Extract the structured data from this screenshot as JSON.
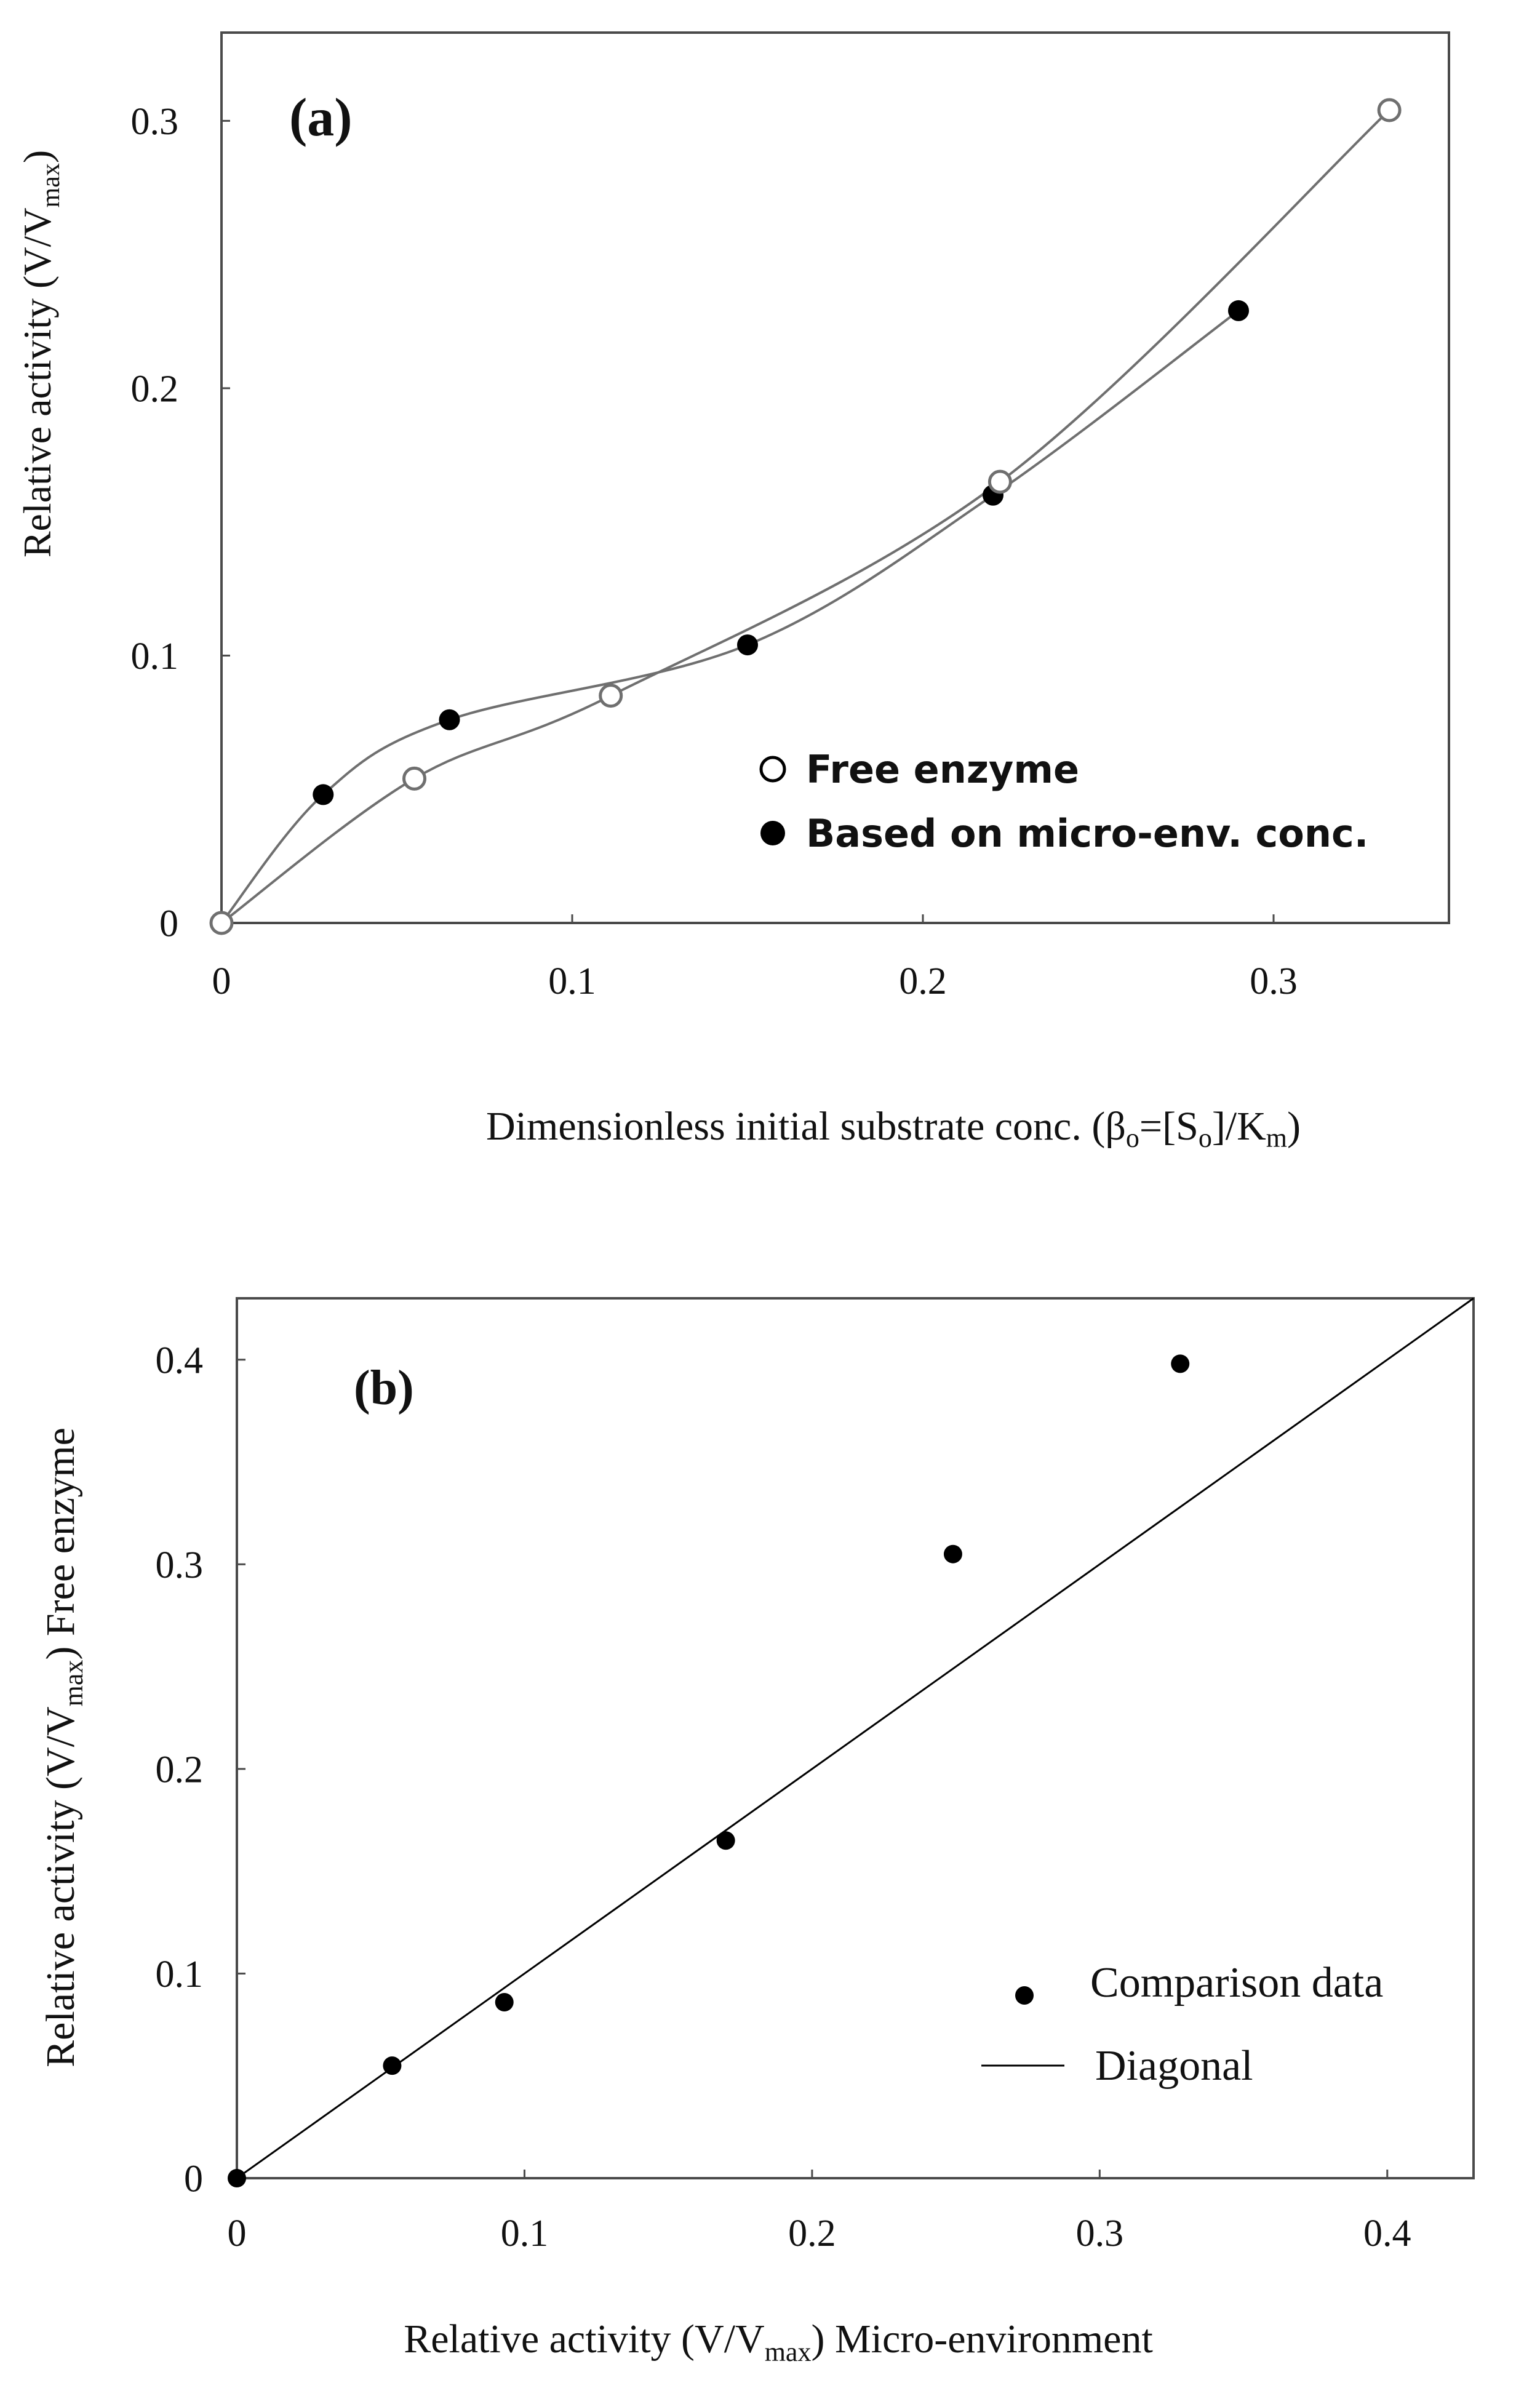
{
  "colors": {
    "ink": "#000000",
    "curve": "#6f6f6f",
    "frame": "#4a4a4a",
    "background": "#ffffff"
  },
  "chart_data": [
    {
      "type": "scatter",
      "panel_label": "(a)",
      "xlabel": {
        "text": "Dimensionless  initial  substrate  conc.  (",
        "beta": "β",
        "beta_sub": "o",
        "mid": "=[S",
        "s_sub": "o",
        "mid2": "]/K",
        "k_sub": "m",
        "close": ")"
      },
      "ylabel": {
        "main": "Relative  activity  (V/V",
        "sub": "max",
        "close": ")"
      },
      "xlim": [
        0,
        0.35
      ],
      "ylim": [
        0,
        0.333
      ],
      "xticks": [
        {
          "value": 0,
          "label": "0"
        },
        {
          "value": 0.1,
          "label": "0.1"
        },
        {
          "value": 0.2,
          "label": "0.2"
        },
        {
          "value": 0.3,
          "label": "0.3"
        }
      ],
      "yticks": [
        {
          "value": 0,
          "label": "0"
        },
        {
          "value": 0.1,
          "label": "0.1"
        },
        {
          "value": 0.2,
          "label": "0.2"
        },
        {
          "value": 0.3,
          "label": "0.3"
        }
      ],
      "grid": false,
      "legend_position": "bottom-right",
      "series": [
        {
          "name": "Free enzyme",
          "marker": "open-circle",
          "smooth_line": true,
          "x": [
            0,
            0.055,
            0.111,
            0.222,
            0.333
          ],
          "y": [
            0,
            0.054,
            0.085,
            0.165,
            0.304
          ]
        },
        {
          "name": "Based on micro-env. conc.",
          "marker": "filled-circle",
          "smooth_line": true,
          "x": [
            0,
            0.029,
            0.065,
            0.15,
            0.22,
            0.29
          ],
          "y": [
            0,
            0.048,
            0.076,
            0.104,
            0.16,
            0.229
          ]
        }
      ]
    },
    {
      "type": "scatter",
      "panel_label": "(b)",
      "xlabel": {
        "main": "Relative activity (V/V",
        "sub": "max",
        "close": ")  Micro-environment"
      },
      "ylabel": {
        "main": "Relative activity (V/V",
        "sub": "max",
        "close": ")  Free enzyme"
      },
      "xlim": [
        0,
        0.43
      ],
      "ylim": [
        0,
        0.43
      ],
      "xticks": [
        {
          "value": 0,
          "label": "0"
        },
        {
          "value": 0.1,
          "label": "0.1"
        },
        {
          "value": 0.2,
          "label": "0.2"
        },
        {
          "value": 0.3,
          "label": "0.3"
        },
        {
          "value": 0.4,
          "label": "0.4"
        }
      ],
      "yticks": [
        {
          "value": 0,
          "label": "0"
        },
        {
          "value": 0.1,
          "label": "0.1"
        },
        {
          "value": 0.2,
          "label": "0.2"
        },
        {
          "value": 0.3,
          "label": "0.3"
        },
        {
          "value": 0.4,
          "label": "0.4"
        }
      ],
      "grid": false,
      "legend_position": "bottom-right",
      "series": [
        {
          "name": "Comparison data",
          "marker": "filled-dot",
          "x": [
            0,
            0.054,
            0.093,
            0.17,
            0.249,
            0.328
          ],
          "y": [
            0,
            0.055,
            0.086,
            0.165,
            0.305,
            0.398
          ]
        },
        {
          "name": "Diagonal",
          "marker": "line",
          "x": [
            0,
            0.43
          ],
          "y": [
            0,
            0.43
          ]
        }
      ]
    }
  ]
}
